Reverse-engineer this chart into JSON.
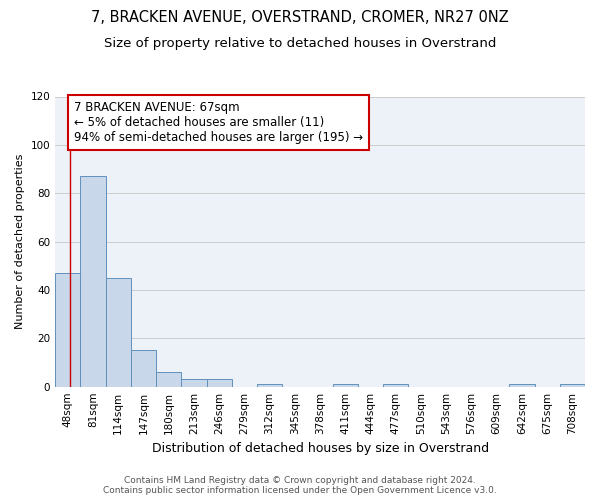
{
  "title1": "7, BRACKEN AVENUE, OVERSTRAND, CROMER, NR27 0NZ",
  "title2": "Size of property relative to detached houses in Overstrand",
  "xlabel": "Distribution of detached houses by size in Overstrand",
  "ylabel": "Number of detached properties",
  "bar_edges": [
    48,
    81,
    114,
    147,
    180,
    213,
    246,
    279,
    312,
    345,
    378,
    411,
    444,
    477,
    510,
    543,
    576,
    609,
    642,
    675,
    708
  ],
  "bar_heights": [
    47,
    87,
    45,
    15,
    6,
    3,
    3,
    0,
    1,
    0,
    0,
    1,
    0,
    1,
    0,
    0,
    0,
    0,
    1,
    0,
    1
  ],
  "bar_color": "#c8d8ea",
  "bar_edge_color": "#6090bb",
  "bar_linewidth": 0.7,
  "property_size": 67,
  "property_line_color": "#cc0000",
  "annotation_text": "7 BRACKEN AVENUE: 67sqm\n← 5% of detached houses are smaller (11)\n94% of semi-detached houses are larger (195) →",
  "annotation_box_color": "#ffffff",
  "annotation_box_edge_color": "#cc0000",
  "ylim": [
    0,
    120
  ],
  "yticks": [
    0,
    20,
    40,
    60,
    80,
    100,
    120
  ],
  "tick_labels": [
    "48sqm",
    "81sqm",
    "114sqm",
    "147sqm",
    "180sqm",
    "213sqm",
    "246sqm",
    "279sqm",
    "312sqm",
    "345sqm",
    "378sqm",
    "411sqm",
    "444sqm",
    "477sqm",
    "510sqm",
    "543sqm",
    "576sqm",
    "609sqm",
    "642sqm",
    "675sqm",
    "708sqm"
  ],
  "grid_color": "#cccccc",
  "bg_color": "#edf2f8",
  "footer": "Contains HM Land Registry data © Crown copyright and database right 2024.\nContains public sector information licensed under the Open Government Licence v3.0.",
  "title1_fontsize": 10.5,
  "title2_fontsize": 9.5,
  "xlabel_fontsize": 9,
  "ylabel_fontsize": 8,
  "tick_fontsize": 7.5,
  "footer_fontsize": 6.5,
  "annot_fontsize": 8.5
}
